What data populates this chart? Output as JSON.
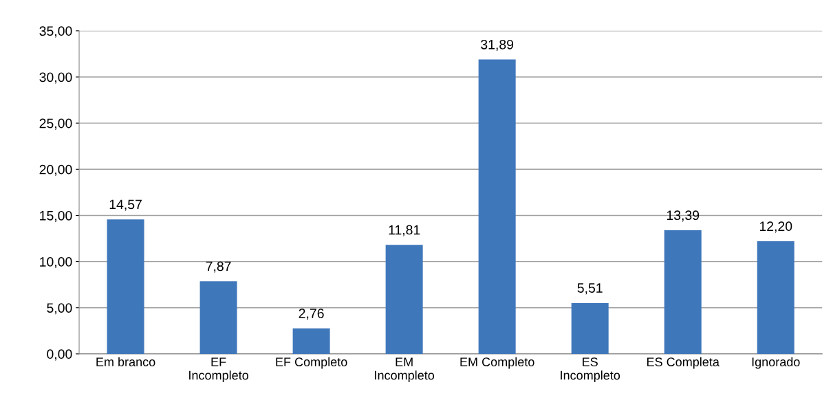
{
  "chart_data": {
    "type": "bar",
    "categories": [
      "Em branco",
      "EF\nIncompleto",
      "EF Completo",
      "EM\nIncompleto",
      "EM Completo",
      "ES\nIncompleto",
      "ES Completa",
      "Ignorado"
    ],
    "values": [
      14.57,
      7.87,
      2.76,
      11.81,
      31.89,
      5.51,
      13.39,
      12.2
    ],
    "value_labels": [
      "14,57",
      "7,87",
      "2,76",
      "11,81",
      "31,89",
      "5,51",
      "13,39",
      "12,20"
    ],
    "color": "#3f77bb",
    "ylim": [
      0,
      35
    ],
    "yticks": [
      {
        "value": 0,
        "label": "0,00"
      },
      {
        "value": 5,
        "label": "5,00"
      },
      {
        "value": 10,
        "label": "10,00"
      },
      {
        "value": 15,
        "label": "15,00"
      },
      {
        "value": 20,
        "label": "20,00"
      },
      {
        "value": 25,
        "label": "25,00"
      },
      {
        "value": 30,
        "label": "30,00"
      },
      {
        "value": 35,
        "label": "35,00"
      }
    ],
    "grid": "y",
    "legend": false
  }
}
